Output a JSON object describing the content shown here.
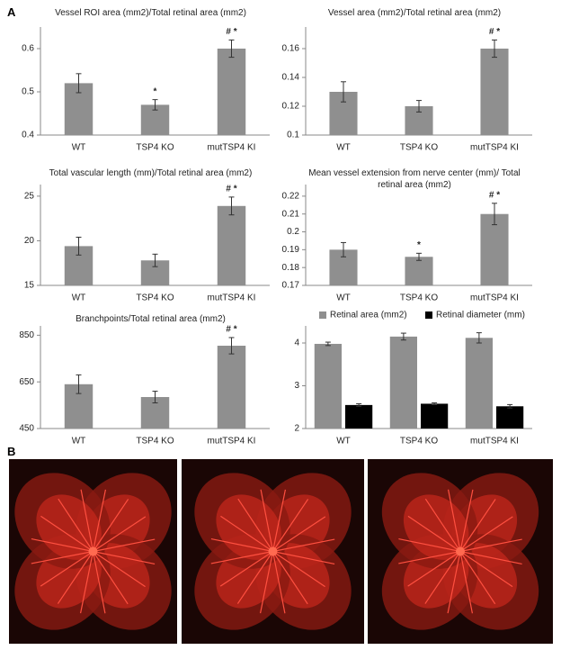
{
  "panels": {
    "a": "A",
    "b": "B"
  },
  "chart_data": [
    {
      "type": "bar",
      "title": "Vessel ROI area (mm2)/Total retinal area (mm2)",
      "categories": [
        "WT",
        "TSP4 KO",
        "mutTSP4 KI"
      ],
      "values": [
        0.52,
        0.47,
        0.6
      ],
      "errors": [
        0.022,
        0.012,
        0.02
      ],
      "annotations": [
        null,
        "*",
        "# *"
      ],
      "color": "#8f8f8f",
      "ylim": [
        0.4,
        0.65
      ],
      "yticks": [
        0.4,
        0.5,
        0.6
      ]
    },
    {
      "type": "bar",
      "title": "Vessel area (mm2)/Total retinal area (mm2)",
      "categories": [
        "WT",
        "TSP4 KO",
        "mutTSP4 KI"
      ],
      "values": [
        0.13,
        0.12,
        0.16
      ],
      "errors": [
        0.007,
        0.004,
        0.006
      ],
      "annotations": [
        null,
        null,
        "# *"
      ],
      "color": "#8f8f8f",
      "ylim": [
        0.1,
        0.175
      ],
      "yticks": [
        0.1,
        0.12,
        0.14,
        0.16
      ]
    },
    {
      "type": "bar",
      "title": "Total vascular length (mm)/Total retinal area (mm2)",
      "categories": [
        "WT",
        "TSP4 KO",
        "mutTSP4 KI"
      ],
      "values": [
        19.4,
        17.8,
        23.9
      ],
      "errors": [
        1.0,
        0.7,
        1.0
      ],
      "annotations": [
        null,
        null,
        "# *"
      ],
      "color": "#8f8f8f",
      "ylim": [
        15,
        26.3
      ],
      "yticks": [
        15,
        20,
        25
      ]
    },
    {
      "type": "bar",
      "title": "Mean vessel extension from nerve center (mm)/ Total retinal area (mm2)",
      "categories": [
        "WT",
        "TSP4 KO",
        "mutTSP4 KI"
      ],
      "values": [
        0.19,
        0.186,
        0.21
      ],
      "errors": [
        0.004,
        0.002,
        0.006
      ],
      "annotations": [
        null,
        "*",
        "# *"
      ],
      "color": "#8f8f8f",
      "ylim": [
        0.17,
        0.2265
      ],
      "yticks": [
        0.17,
        0.18,
        0.19,
        0.2,
        0.21,
        0.22
      ]
    },
    {
      "type": "bar",
      "title": "Branchpoints/Total retinal area (mm2)",
      "categories": [
        "WT",
        "TSP4 KO",
        "mutTSP4 KI"
      ],
      "values": [
        640,
        585,
        805
      ],
      "errors": [
        40,
        25,
        35
      ],
      "annotations": [
        null,
        null,
        "# *"
      ],
      "color": "#8f8f8f",
      "ylim": [
        450,
        890
      ],
      "yticks": [
        450,
        650,
        850
      ]
    },
    {
      "type": "grouped_bar",
      "categories": [
        "WT",
        "TSP4 KO",
        "mutTSP4 KI"
      ],
      "legend": "top",
      "series": [
        {
          "name": "Retinal area (mm2)",
          "color": "#8f8f8f",
          "values": [
            3.98,
            4.15,
            4.12
          ],
          "errors": [
            0.04,
            0.08,
            0.12
          ]
        },
        {
          "name": "Retinal diameter (mm)",
          "color": "#000000",
          "values": [
            2.55,
            2.58,
            2.52
          ],
          "errors": [
            0.03,
            0.02,
            0.04
          ]
        }
      ],
      "ylim": [
        2,
        4.4
      ],
      "yticks": [
        2,
        3,
        4
      ]
    }
  ]
}
